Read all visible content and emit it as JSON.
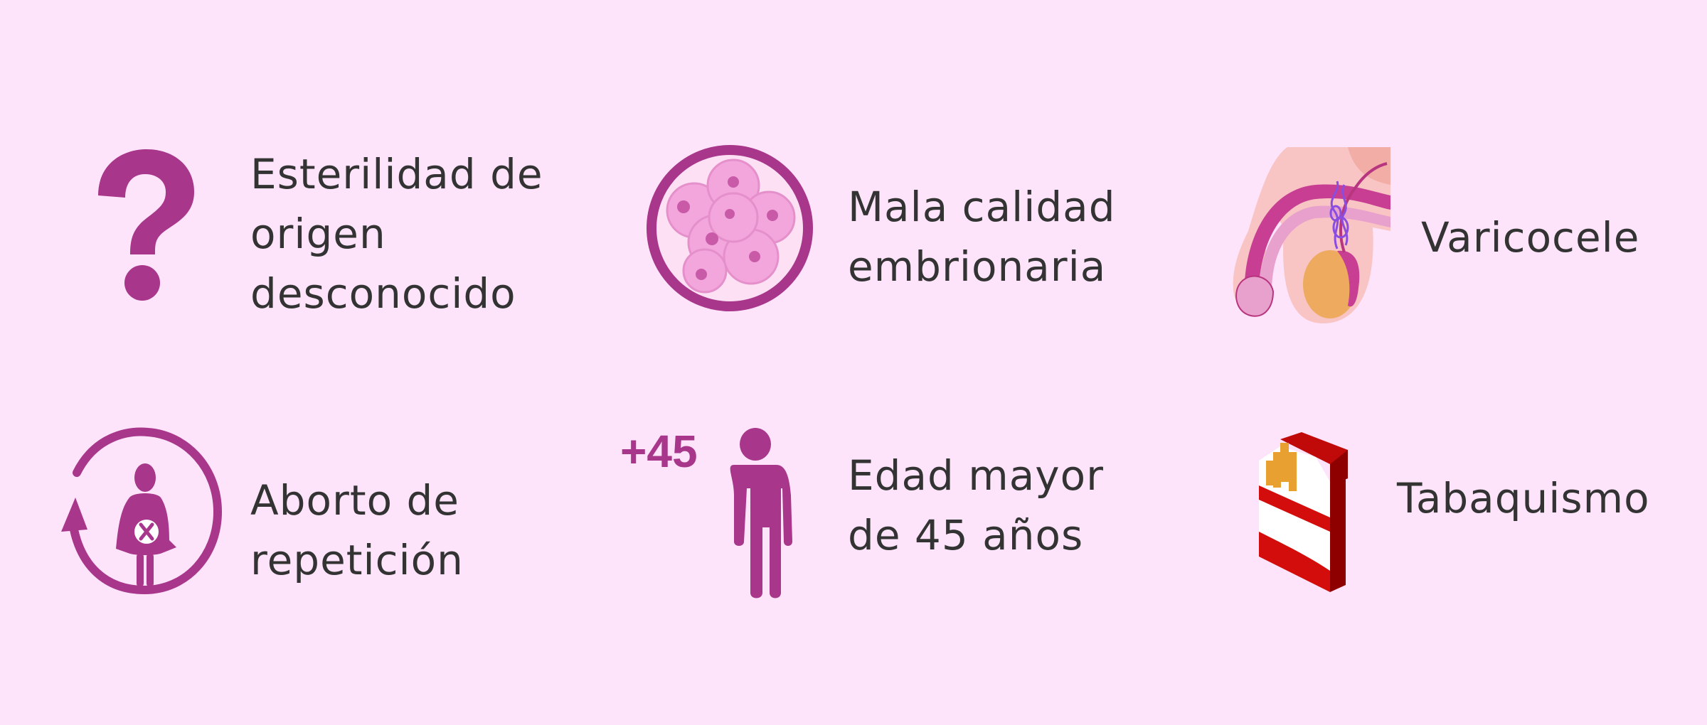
{
  "colors": {
    "background": "#fee4fa",
    "accent": "#a8368a",
    "text": "#333333"
  },
  "items": [
    {
      "icon": "question-mark-icon",
      "lines": [
        "Esterilidad de",
        "origen",
        "desconocido"
      ]
    },
    {
      "icon": "embryo-icon",
      "lines": [
        "Mala calidad",
        "embrionaria"
      ]
    },
    {
      "icon": "varicocele-anatomy-icon",
      "lines": [
        "Varicocele"
      ]
    },
    {
      "icon": "repeat-miscarriage-icon",
      "lines": [
        "Aborto de",
        "repetición"
      ]
    },
    {
      "icon": "person-age-icon",
      "badge": "+45",
      "lines": [
        "Edad mayor",
        "de 45 años"
      ]
    },
    {
      "icon": "cigarette-pack-icon",
      "lines": [
        "Tabaquismo"
      ]
    }
  ]
}
